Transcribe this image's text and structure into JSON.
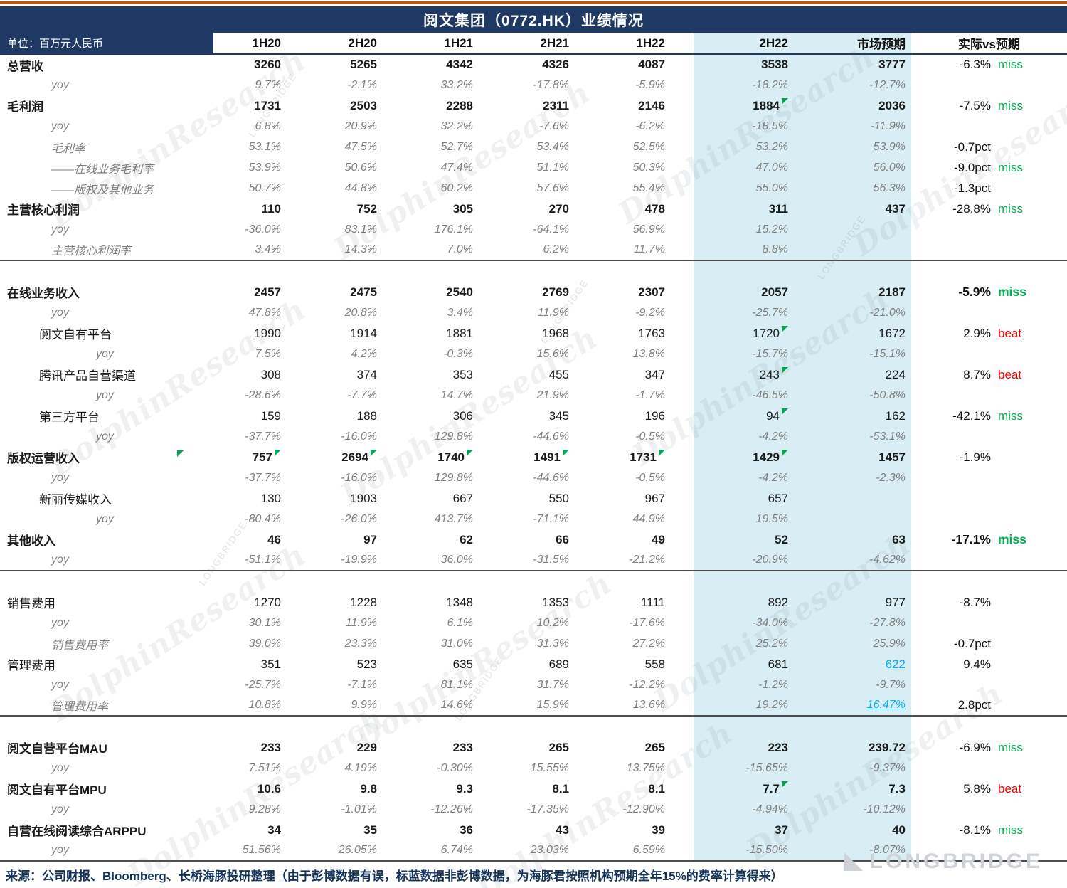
{
  "meta": {
    "title": "阅文集团（0772.HK）业绩情况",
    "unit_label": "单位：百万元人民币",
    "footer": "来源：公司财报、Bloomberg、长桥海豚投研整理（由于彭博数据有误，标蓝数据非彭博数据，为海豚君按照机构预期全年15%的费率计算得来）"
  },
  "colors": {
    "header_bg": "#1F3864",
    "accent_line": "#B5541C",
    "highlight": "#D9EEF4",
    "miss": "#00B050",
    "beat": "#FF0000",
    "special_blue": "#00B0F0",
    "flag_green": "#00A651",
    "yoy_gray": "#7F7F7F",
    "divider": "#4D4D4D",
    "footer_text": "#15325B"
  },
  "watermarks": {
    "diagonal": "DolphinResearch",
    "brand": "LONGBRIDGE",
    "corner": "LONGBRIDGE"
  },
  "chart_data": {
    "type": "table",
    "title": "阅文集团（0772.HK）业绩情况",
    "unit": "百万元人民币",
    "columns": [
      "1H20",
      "2H20",
      "1H21",
      "2H21",
      "1H22",
      "2H22",
      "市场预期",
      "实际vs预期"
    ],
    "highlighted_columns": [
      "2H22",
      "市场预期"
    ],
    "rows": [
      {
        "label": "总营收",
        "indent": 0,
        "style": "bold",
        "values": [
          "3260",
          "5265",
          "4342",
          "4326",
          "4087",
          "3538",
          "3777"
        ],
        "vs": "-6.3%",
        "tag": "miss"
      },
      {
        "label": "yoy",
        "indent": 2,
        "style": "yoy",
        "values": [
          "9.7%",
          "-2.1%",
          "33.2%",
          "-17.8%",
          "-5.9%",
          "-18.2%",
          "-12.7%"
        ]
      },
      {
        "label": "毛利润",
        "indent": 0,
        "style": "bold",
        "values": [
          "1731",
          "2503",
          "2288",
          "2311",
          "2146",
          "1884",
          "2036"
        ],
        "flags": [
          5
        ],
        "vs": "-7.5%",
        "tag": "miss"
      },
      {
        "label": "yoy",
        "indent": 2,
        "style": "yoy",
        "values": [
          "6.8%",
          "20.9%",
          "32.2%",
          "-7.6%",
          "-6.2%",
          "-18.5%",
          "-11.9%"
        ]
      },
      {
        "label": "毛利率",
        "indent": 2,
        "style": "yoy",
        "values": [
          "53.1%",
          "47.5%",
          "52.7%",
          "53.4%",
          "52.5%",
          "53.2%",
          "53.9%"
        ],
        "vs": "-0.7pct"
      },
      {
        "label": "——在线业务毛利率",
        "indent": 2,
        "style": "yoy",
        "values": [
          "53.9%",
          "50.6%",
          "47.4%",
          "51.1%",
          "50.3%",
          "47.0%",
          "56.0%"
        ],
        "vs": "-9.0pct",
        "tag": "miss"
      },
      {
        "label": "——版权及其他业务",
        "indent": 2,
        "style": "yoy",
        "values": [
          "50.7%",
          "44.8%",
          "60.2%",
          "57.6%",
          "55.4%",
          "55.0%",
          "56.3%"
        ],
        "vs": "-1.3pct"
      },
      {
        "label": "主营核心利润",
        "indent": 0,
        "style": "bold",
        "values": [
          "110",
          "752",
          "305",
          "270",
          "478",
          "311",
          "437"
        ],
        "vs": "-28.8%",
        "tag": "miss"
      },
      {
        "label": "yoy",
        "indent": 2,
        "style": "yoy",
        "values": [
          "-36.0%",
          "83.1%",
          "176.1%",
          "-64.1%",
          "56.9%",
          "15.2%",
          ""
        ]
      },
      {
        "label": "主营核心利润率",
        "indent": 2,
        "style": "yoy",
        "values": [
          "3.4%",
          "14.3%",
          "7.0%",
          "6.2%",
          "11.7%",
          "8.8%",
          ""
        ]
      },
      {
        "type": "spacer"
      },
      {
        "label": "在线业务收入",
        "indent": 0,
        "style": "bold",
        "values": [
          "2457",
          "2475",
          "2540",
          "2769",
          "2307",
          "2057",
          "2187"
        ],
        "vs": "-5.9%",
        "tag": "miss",
        "vs_bold": true
      },
      {
        "label": "yoy",
        "indent": 2,
        "style": "yoy",
        "values": [
          "47.8%",
          "20.8%",
          "3.4%",
          "11.9%",
          "-9.2%",
          "-25.7%",
          "-21.0%"
        ]
      },
      {
        "label": "阅文自有平台",
        "indent": 1,
        "style": "normal",
        "values": [
          "1990",
          "1914",
          "1881",
          "1968",
          "1763",
          "1720",
          "1672"
        ],
        "flags": [
          5
        ],
        "vs": "2.9%",
        "tag": "beat"
      },
      {
        "label": "yoy",
        "indent": 3,
        "style": "yoy",
        "values": [
          "7.5%",
          "4.2%",
          "-0.3%",
          "15.6%",
          "13.8%",
          "-15.7%",
          "-15.1%"
        ]
      },
      {
        "label": "腾讯产品自营渠道",
        "indent": 1,
        "style": "normal",
        "values": [
          "308",
          "374",
          "353",
          "455",
          "347",
          "243",
          "224"
        ],
        "flags": [
          5
        ],
        "vs": "8.7%",
        "tag": "beat"
      },
      {
        "label": "yoy",
        "indent": 3,
        "style": "yoy",
        "values": [
          "-28.6%",
          "-7.7%",
          "14.7%",
          "21.9%",
          "-1.7%",
          "-46.5%",
          "-50.8%"
        ]
      },
      {
        "label": "第三方平台",
        "indent": 1,
        "style": "normal",
        "values": [
          "159",
          "188",
          "306",
          "345",
          "196",
          "94",
          "162"
        ],
        "flags": [
          5
        ],
        "vs": "-42.1%",
        "tag": "miss"
      },
      {
        "label": "yoy",
        "indent": 3,
        "style": "yoy",
        "values": [
          "-37.7%",
          "-16.0%",
          "129.8%",
          "-44.6%",
          "-0.5%",
          "-4.2%",
          "-53.1%"
        ]
      },
      {
        "label": "版权运营收入",
        "indent": 0,
        "style": "bold",
        "label_flag": true,
        "values": [
          "757",
          "2694",
          "1740",
          "1491",
          "1731",
          "1429",
          "1457"
        ],
        "flags": [
          0,
          1,
          2,
          3,
          4,
          5
        ],
        "vs": "-1.9%"
      },
      {
        "label": "yoy",
        "indent": 2,
        "style": "yoy",
        "values": [
          "-37.7%",
          "-16.0%",
          "129.8%",
          "-44.6%",
          "-0.5%",
          "-4.2%",
          "-2.3%"
        ]
      },
      {
        "label": "新丽传媒收入",
        "indent": 1,
        "style": "normal",
        "values": [
          "130",
          "1903",
          "667",
          "550",
          "967",
          "657",
          ""
        ]
      },
      {
        "label": "yoy",
        "indent": 3,
        "style": "yoy",
        "values": [
          "-80.4%",
          "-26.0%",
          "413.7%",
          "-71.1%",
          "44.9%",
          "19.5%",
          ""
        ]
      },
      {
        "label": "其他收入",
        "indent": 0,
        "style": "bold",
        "values": [
          "46",
          "97",
          "62",
          "66",
          "49",
          "52",
          "63"
        ],
        "vs": "-17.1%",
        "tag": "miss",
        "vs_bold": true
      },
      {
        "label": "yoy",
        "indent": 2,
        "style": "yoy",
        "values": [
          "-51.1%",
          "-19.9%",
          "36.0%",
          "-31.5%",
          "-21.2%",
          "-20.9%",
          "-4.62%"
        ]
      },
      {
        "type": "spacer"
      },
      {
        "label": "销售费用",
        "indent": 0,
        "style": "normal",
        "values": [
          "1270",
          "1228",
          "1348",
          "1353",
          "1111",
          "892",
          "977"
        ],
        "vs": "-8.7%"
      },
      {
        "label": "yoy",
        "indent": 2,
        "style": "yoy",
        "values": [
          "30.1%",
          "11.9%",
          "6.1%",
          "10.2%",
          "-17.6%",
          "-34.0%",
          "-27.8%"
        ]
      },
      {
        "label": "销售费用率",
        "indent": 2,
        "style": "yoy",
        "values": [
          "39.0%",
          "23.3%",
          "31.0%",
          "31.3%",
          "27.2%",
          "25.2%",
          "25.9%"
        ],
        "vs": "-0.7pct"
      },
      {
        "label": "管理费用",
        "indent": 0,
        "style": "normal",
        "values": [
          "351",
          "523",
          "635",
          "689",
          "558",
          "681",
          "622"
        ],
        "special": {
          "6": "blue"
        },
        "vs": "9.4%"
      },
      {
        "label": "yoy",
        "indent": 2,
        "style": "yoy",
        "values": [
          "-25.7%",
          "-7.1%",
          "81.1%",
          "31.7%",
          "-12.2%",
          "-1.2%",
          "-9.7%"
        ]
      },
      {
        "label": "管理费用率",
        "indent": 2,
        "style": "yoy",
        "values": [
          "10.8%",
          "9.9%",
          "14.6%",
          "15.9%",
          "13.6%",
          "19.2%",
          "16.47%"
        ],
        "special": {
          "6": "blue-underline"
        },
        "vs": "2.8pct"
      },
      {
        "type": "spacer"
      },
      {
        "label": "阅文自营平台MAU",
        "indent": 0,
        "style": "bold",
        "values": [
          "233",
          "229",
          "233",
          "265",
          "265",
          "223",
          "239.72"
        ],
        "vs": "-6.9%",
        "tag": "miss"
      },
      {
        "label": "yoy",
        "indent": 2,
        "style": "yoy",
        "values": [
          "7.51%",
          "4.19%",
          "-0.30%",
          "15.55%",
          "13.75%",
          "-15.65%",
          "-9.37%"
        ]
      },
      {
        "label": "阅文自有平台MPU",
        "indent": 0,
        "style": "bold",
        "values": [
          "10.6",
          "9.8",
          "9.3",
          "8.1",
          "8.1",
          "7.7",
          "7.3"
        ],
        "flags": [
          5
        ],
        "vs": "5.8%",
        "tag": "beat"
      },
      {
        "label": "yoy",
        "indent": 2,
        "style": "yoy",
        "values": [
          "9.28%",
          "-1.01%",
          "-12.26%",
          "-17.35%",
          "-12.90%",
          "-4.94%",
          "-10.12%"
        ]
      },
      {
        "label": "自营在线阅读综合ARPPU",
        "indent": 0,
        "style": "bold",
        "values": [
          "34",
          "35",
          "36",
          "43",
          "39",
          "37",
          "40"
        ],
        "vs": "-8.1%",
        "tag": "miss"
      },
      {
        "label": "yoy",
        "indent": 2,
        "style": "yoy",
        "values": [
          "51.56%",
          "26.05%",
          "6.74%",
          "23.03%",
          "6.59%",
          "-15.50%",
          "-8.07%"
        ]
      }
    ]
  }
}
